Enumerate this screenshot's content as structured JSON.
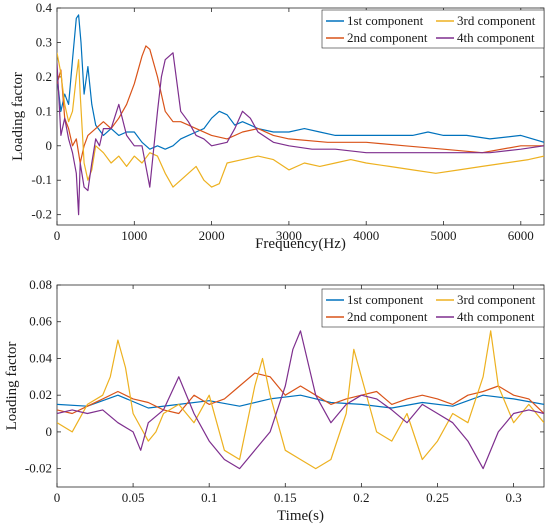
{
  "chart_data": [
    {
      "type": "line",
      "xlabel": "Frequency(Hz)",
      "ylabel": "Loading factor",
      "xlim": [
        0,
        6300
      ],
      "ylim": [
        -0.23,
        0.4
      ],
      "xticks": [
        0,
        1000,
        2000,
        3000,
        4000,
        5000,
        6000
      ],
      "yticks": [
        -0.2,
        -0.1,
        0,
        0.1,
        0.2,
        0.3,
        0.4
      ],
      "xtick_labels": [
        "0",
        "1000",
        "2000",
        "3000",
        "4000",
        "5000",
        "6000"
      ],
      "ytick_labels": [
        "-0.2",
        "-0.1",
        "0",
        "0.1",
        "0.2",
        "0.3",
        "0.4"
      ],
      "grid": false,
      "legend_position": "top-right",
      "series": [
        {
          "name": "1st component",
          "color": "#0072BD",
          "x": [
            0,
            50,
            100,
            150,
            200,
            250,
            280,
            310,
            350,
            400,
            450,
            500,
            600,
            700,
            800,
            900,
            1000,
            1100,
            1200,
            1300,
            1400,
            1500,
            1600,
            1700,
            1800,
            1900,
            2000,
            2100,
            2200,
            2300,
            2400,
            2500,
            2600,
            2800,
            3000,
            3200,
            3400,
            3600,
            3800,
            4000,
            4300,
            4600,
            4800,
            5000,
            5300,
            5600,
            6000,
            6300
          ],
          "y": [
            0.2,
            0.1,
            0.15,
            0.12,
            0.25,
            0.37,
            0.38,
            0.3,
            0.15,
            0.23,
            0.12,
            0.06,
            0.03,
            0.05,
            0.03,
            0.04,
            0.04,
            0.01,
            -0.01,
            0.0,
            -0.01,
            0.0,
            0.02,
            0.03,
            0.04,
            0.05,
            0.08,
            0.1,
            0.09,
            0.06,
            0.07,
            0.06,
            0.05,
            0.04,
            0.04,
            0.05,
            0.04,
            0.03,
            0.03,
            0.03,
            0.03,
            0.03,
            0.04,
            0.03,
            0.03,
            0.02,
            0.03,
            0.01
          ]
        },
        {
          "name": "2nd component",
          "color": "#D95319",
          "x": [
            0,
            50,
            100,
            150,
            200,
            250,
            300,
            350,
            400,
            500,
            600,
            700,
            800,
            900,
            1000,
            1100,
            1150,
            1200,
            1300,
            1400,
            1500,
            1600,
            1700,
            1800,
            2000,
            2200,
            2400,
            2600,
            2800,
            3000,
            3500,
            4000,
            4500,
            5000,
            5500,
            6000,
            6300
          ],
          "y": [
            0.18,
            0.22,
            0.08,
            0.05,
            0.0,
            0.02,
            -0.05,
            0.0,
            0.03,
            0.05,
            0.07,
            0.05,
            0.08,
            0.12,
            0.18,
            0.26,
            0.29,
            0.28,
            0.2,
            0.1,
            0.07,
            0.07,
            0.06,
            0.05,
            0.03,
            0.02,
            0.04,
            0.05,
            0.03,
            0.02,
            0.01,
            0.01,
            0.0,
            -0.01,
            -0.02,
            0.0,
            0.0
          ]
        },
        {
          "name": "3rd component",
          "color": "#EDB120",
          "x": [
            0,
            50,
            100,
            150,
            200,
            250,
            280,
            300,
            350,
            400,
            450,
            500,
            600,
            700,
            800,
            900,
            1000,
            1100,
            1200,
            1300,
            1400,
            1500,
            1600,
            1700,
            1800,
            1900,
            2000,
            2100,
            2200,
            2400,
            2600,
            2800,
            3000,
            3200,
            3400,
            3600,
            3800,
            4000,
            4300,
            4600,
            4900,
            5200,
            5500,
            5800,
            6100,
            6300
          ],
          "y": [
            0.27,
            0.21,
            0.12,
            0.07,
            0.1,
            0.2,
            0.25,
            0.15,
            -0.05,
            -0.1,
            -0.07,
            0.0,
            -0.02,
            -0.05,
            -0.03,
            -0.06,
            -0.03,
            -0.05,
            -0.02,
            -0.03,
            -0.08,
            -0.12,
            -0.1,
            -0.08,
            -0.06,
            -0.1,
            -0.12,
            -0.11,
            -0.05,
            -0.04,
            -0.03,
            -0.04,
            -0.07,
            -0.05,
            -0.06,
            -0.05,
            -0.04,
            -0.05,
            -0.06,
            -0.07,
            -0.08,
            -0.07,
            -0.06,
            -0.05,
            -0.04,
            -0.03
          ]
        },
        {
          "name": "4th component",
          "color": "#7E2F8E",
          "x": [
            0,
            50,
            100,
            150,
            200,
            250,
            280,
            300,
            350,
            400,
            450,
            500,
            550,
            600,
            700,
            800,
            900,
            1000,
            1100,
            1200,
            1300,
            1350,
            1400,
            1500,
            1600,
            1700,
            1800,
            1900,
            2000,
            2200,
            2300,
            2400,
            2500,
            2600,
            2800,
            3000,
            3300,
            3600,
            4000,
            4400,
            4800,
            5200,
            5600,
            6000,
            6300
          ],
          "y": [
            0.24,
            0.03,
            0.08,
            0.02,
            -0.02,
            -0.08,
            -0.2,
            -0.05,
            -0.12,
            -0.13,
            -0.05,
            0.02,
            0.0,
            0.05,
            0.05,
            0.12,
            0.03,
            0.0,
            0.0,
            -0.12,
            0.1,
            0.2,
            0.25,
            0.27,
            0.1,
            0.07,
            0.03,
            0.02,
            0.0,
            0.01,
            0.05,
            0.1,
            0.08,
            0.04,
            0.01,
            0.0,
            -0.01,
            -0.01,
            -0.02,
            -0.02,
            -0.02,
            -0.02,
            -0.02,
            -0.01,
            0.0
          ]
        }
      ]
    },
    {
      "type": "line",
      "xlabel": "Time(s)",
      "ylabel": "Loading factor",
      "xlim": [
        0,
        0.32
      ],
      "ylim": [
        -0.03,
        0.08
      ],
      "xticks": [
        0,
        0.05,
        0.1,
        0.15,
        0.2,
        0.25,
        0.3
      ],
      "yticks": [
        -0.02,
        0,
        0.02,
        0.04,
        0.06,
        0.08
      ],
      "xtick_labels": [
        "0",
        "0.05",
        "0.1",
        "0.15",
        "0.2",
        "0.25",
        "0.3"
      ],
      "ytick_labels": [
        "-0.02",
        "0",
        "0.02",
        "0.04",
        "0.06",
        "0.08"
      ],
      "grid": false,
      "legend_position": "top-right",
      "series": [
        {
          "name": "1st component",
          "color": "#0072BD",
          "x": [
            0,
            0.02,
            0.04,
            0.06,
            0.08,
            0.1,
            0.12,
            0.14,
            0.16,
            0.18,
            0.2,
            0.22,
            0.24,
            0.26,
            0.28,
            0.3,
            0.32
          ],
          "y": [
            0.015,
            0.014,
            0.02,
            0.013,
            0.015,
            0.017,
            0.014,
            0.018,
            0.02,
            0.016,
            0.015,
            0.013,
            0.016,
            0.014,
            0.02,
            0.018,
            0.015
          ]
        },
        {
          "name": "2nd component",
          "color": "#D95319",
          "x": [
            0,
            0.01,
            0.02,
            0.03,
            0.04,
            0.05,
            0.06,
            0.07,
            0.08,
            0.09,
            0.1,
            0.11,
            0.12,
            0.13,
            0.14,
            0.15,
            0.16,
            0.17,
            0.18,
            0.19,
            0.2,
            0.21,
            0.22,
            0.23,
            0.24,
            0.25,
            0.26,
            0.27,
            0.28,
            0.29,
            0.3,
            0.31,
            0.32
          ],
          "y": [
            0.012,
            0.01,
            0.014,
            0.018,
            0.022,
            0.018,
            0.016,
            0.012,
            0.01,
            0.02,
            0.015,
            0.018,
            0.025,
            0.032,
            0.03,
            0.02,
            0.025,
            0.02,
            0.015,
            0.018,
            0.02,
            0.022,
            0.015,
            0.018,
            0.02,
            0.018,
            0.015,
            0.02,
            0.022,
            0.025,
            0.02,
            0.018,
            0.01
          ]
        },
        {
          "name": "3rd component",
          "color": "#EDB120",
          "x": [
            0,
            0.01,
            0.02,
            0.03,
            0.035,
            0.04,
            0.045,
            0.05,
            0.06,
            0.065,
            0.07,
            0.08,
            0.09,
            0.1,
            0.11,
            0.12,
            0.13,
            0.135,
            0.14,
            0.15,
            0.16,
            0.17,
            0.18,
            0.19,
            0.195,
            0.2,
            0.21,
            0.22,
            0.23,
            0.24,
            0.25,
            0.26,
            0.27,
            0.28,
            0.285,
            0.29,
            0.3,
            0.31,
            0.32
          ],
          "y": [
            0.005,
            0.0,
            0.015,
            0.02,
            0.03,
            0.05,
            0.035,
            0.01,
            -0.005,
            0.0,
            0.01,
            0.015,
            0.005,
            0.02,
            -0.01,
            -0.015,
            0.025,
            0.04,
            0.02,
            -0.01,
            -0.015,
            -0.02,
            -0.015,
            0.01,
            0.045,
            0.03,
            0.0,
            -0.005,
            0.01,
            -0.015,
            -0.005,
            0.01,
            0.005,
            0.03,
            0.055,
            0.025,
            0.005,
            0.015,
            0.005
          ]
        },
        {
          "name": "4th component",
          "color": "#7E2F8E",
          "x": [
            0,
            0.01,
            0.02,
            0.03,
            0.04,
            0.05,
            0.055,
            0.06,
            0.07,
            0.08,
            0.09,
            0.1,
            0.11,
            0.12,
            0.13,
            0.14,
            0.15,
            0.155,
            0.16,
            0.17,
            0.18,
            0.19,
            0.2,
            0.21,
            0.22,
            0.23,
            0.24,
            0.25,
            0.26,
            0.27,
            0.28,
            0.29,
            0.3,
            0.31,
            0.32
          ],
          "y": [
            0.01,
            0.012,
            0.01,
            0.012,
            0.005,
            0.0,
            -0.01,
            0.005,
            0.012,
            0.03,
            0.01,
            -0.005,
            -0.015,
            -0.02,
            -0.01,
            0.0,
            0.025,
            0.045,
            0.055,
            0.02,
            0.005,
            0.015,
            0.02,
            0.018,
            0.012,
            0.005,
            0.015,
            0.01,
            0.005,
            -0.005,
            -0.02,
            0.0,
            0.01,
            0.012,
            0.01
          ]
        }
      ]
    }
  ]
}
